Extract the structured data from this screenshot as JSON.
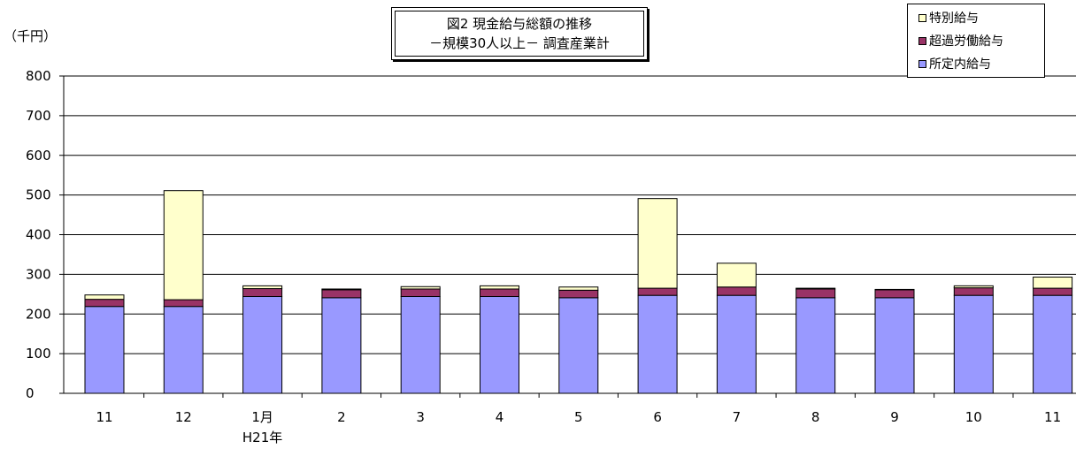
{
  "chart_data": {
    "type": "bar",
    "stacked": true,
    "title_lines": [
      "図2 現金給与総額の推移",
      "－規模30人以上－ 調査産業計"
    ],
    "unit_label": "（千円）",
    "categories": [
      "11",
      "12",
      "1月",
      "2",
      "3",
      "4",
      "5",
      "6",
      "7",
      "8",
      "9",
      "10",
      "11"
    ],
    "category_sublabels": [
      "",
      "",
      "H21年",
      "",
      "",
      "",
      "",
      "",
      "",
      "",
      "",
      "",
      ""
    ],
    "ylim": [
      0,
      800
    ],
    "yticks": [
      0,
      100,
      200,
      300,
      400,
      500,
      600,
      700,
      800
    ],
    "grid": true,
    "legend_position": "top-right",
    "series": [
      {
        "name": "所定内給与",
        "color": "#9999ff",
        "values": [
          219,
          219,
          244,
          241,
          244,
          244,
          241,
          247,
          247,
          241,
          241,
          247,
          247
        ]
      },
      {
        "name": "超過労働給与",
        "color": "#993366",
        "values": [
          18,
          17,
          20,
          20,
          19,
          19,
          19,
          18,
          21,
          22,
          20,
          19,
          18
        ]
      },
      {
        "name": "特別給与",
        "color": "#ffffcc",
        "values": [
          11,
          275,
          7,
          2,
          6,
          8,
          8,
          226,
          60,
          2,
          1,
          5,
          28
        ]
      }
    ]
  }
}
